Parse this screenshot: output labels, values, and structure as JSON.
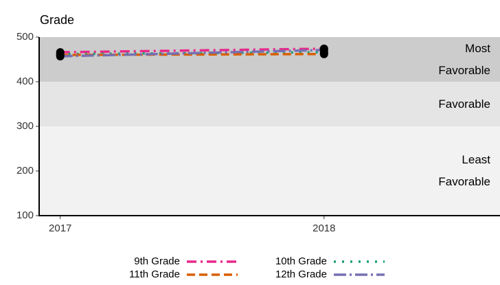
{
  "chart_data": {
    "type": "line",
    "title": "Grade",
    "x": [
      2017,
      2018
    ],
    "xlim": [
      2016.92,
      2018.667
    ],
    "xticks": [
      2017,
      2018
    ],
    "ylim": [
      100,
      500
    ],
    "yticks": [
      100,
      200,
      300,
      400,
      500
    ],
    "bands": [
      {
        "label": "Most Favorable",
        "range": [
          400,
          500
        ],
        "color": "#cccccc"
      },
      {
        "label": "Favorable",
        "range": [
          300,
          400
        ],
        "color": "#e5e5e5"
      },
      {
        "label": "Least Favorable",
        "range": [
          100,
          300
        ],
        "color": "#f2f2f2"
      }
    ],
    "series": [
      {
        "name": "9th Grade",
        "color": "#e7298a",
        "dash": "14 6 3 6",
        "values": [
          466,
          474
        ]
      },
      {
        "name": "10th Grade",
        "color": "#1b9e77",
        "dash": "3 9",
        "values": [
          462,
          466
        ]
      },
      {
        "name": "11th Grade",
        "color": "#d95f02",
        "dash": "12 6",
        "values": [
          460,
          462
        ]
      },
      {
        "name": "12th Grade",
        "color": "#7570b3",
        "dash": "18 5 3 5",
        "values": [
          457,
          471
        ]
      }
    ],
    "legend": "bottom",
    "point_color": "#000000"
  }
}
